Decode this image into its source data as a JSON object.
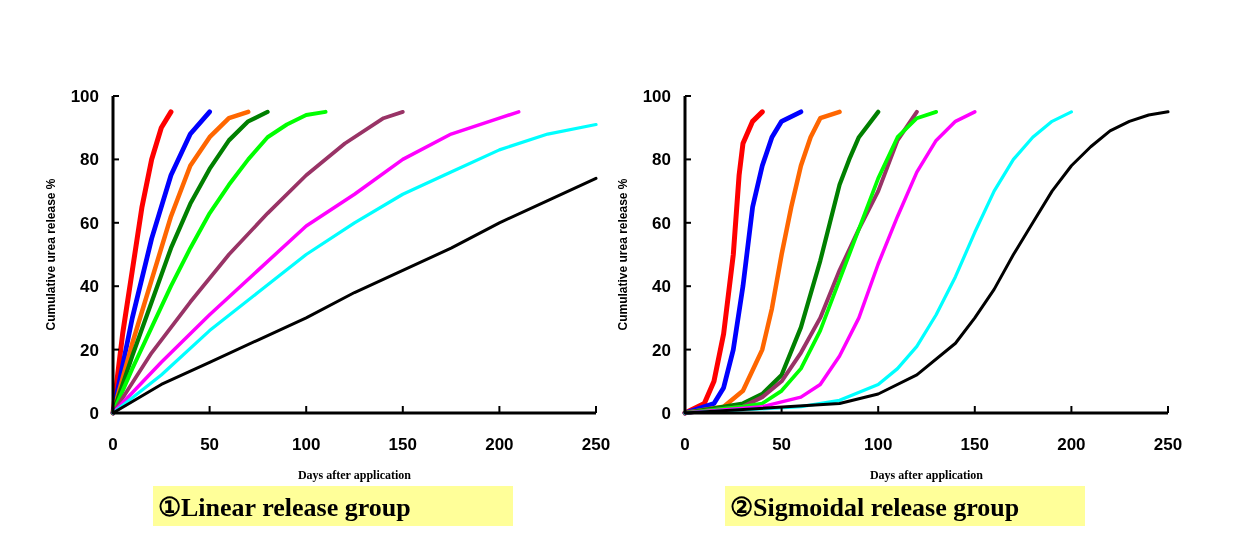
{
  "chart_data": [
    {
      "type": "line",
      "title": "①Linear release group",
      "xlabel": "Days after application",
      "ylabel": "Cumulative urea release %",
      "xlim": [
        0,
        250
      ],
      "xticks": [
        0,
        50,
        100,
        150,
        200,
        250
      ],
      "ylim": [
        0,
        100
      ],
      "yticks": [
        0,
        20,
        40,
        60,
        80,
        100
      ],
      "series": [
        {
          "color": "#ff0000",
          "x": [
            0,
            5,
            10,
            15,
            20,
            25,
            30
          ],
          "values": [
            0,
            25,
            45,
            65,
            80,
            90,
            95
          ]
        },
        {
          "color": "#0000ff",
          "x": [
            0,
            10,
            20,
            30,
            40,
            50
          ],
          "values": [
            0,
            30,
            55,
            75,
            88,
            95
          ]
        },
        {
          "color": "#ff6600",
          "x": [
            0,
            10,
            20,
            30,
            40,
            50,
            60,
            70
          ],
          "values": [
            0,
            22,
            42,
            62,
            78,
            87,
            93,
            95
          ]
        },
        {
          "color": "#008000",
          "x": [
            0,
            10,
            20,
            30,
            40,
            50,
            60,
            70,
            80
          ],
          "values": [
            0,
            18,
            35,
            52,
            66,
            77,
            86,
            92,
            95
          ]
        },
        {
          "color": "#00ff00",
          "x": [
            0,
            10,
            20,
            30,
            40,
            50,
            60,
            70,
            80,
            90,
            100,
            110
          ],
          "values": [
            0,
            14,
            27,
            40,
            52,
            63,
            72,
            80,
            87,
            91,
            94,
            95
          ]
        },
        {
          "color": "#993366",
          "x": [
            0,
            20,
            40,
            60,
            80,
            100,
            120,
            140,
            150
          ],
          "values": [
            0,
            19,
            35,
            50,
            63,
            75,
            85,
            93,
            95
          ]
        },
        {
          "color": "#ff00ff",
          "x": [
            0,
            25,
            50,
            75,
            100,
            125,
            150,
            175,
            200,
            210
          ],
          "values": [
            0,
            16,
            31,
            45,
            59,
            69,
            80,
            88,
            93,
            95
          ]
        },
        {
          "color": "#00ffff",
          "x": [
            0,
            25,
            50,
            75,
            100,
            125,
            150,
            175,
            200,
            225,
            250
          ],
          "values": [
            0,
            12,
            26,
            38,
            50,
            60,
            69,
            76,
            83,
            88,
            91
          ]
        },
        {
          "color": "#000000",
          "x": [
            0,
            25,
            50,
            75,
            100,
            125,
            150,
            175,
            200,
            225,
            250
          ],
          "values": [
            0,
            9,
            16,
            23,
            30,
            38,
            45,
            52,
            60,
            67,
            74
          ]
        }
      ]
    },
    {
      "type": "line",
      "title": "②Sigmoidal release group",
      "xlabel": "Days after application",
      "ylabel": "Cumulative urea release %",
      "xlim": [
        0,
        250
      ],
      "xticks": [
        0,
        50,
        100,
        150,
        200,
        250
      ],
      "ylim": [
        0,
        100
      ],
      "yticks": [
        0,
        20,
        40,
        60,
        80,
        100
      ],
      "series": [
        {
          "color": "#ff0000",
          "x": [
            0,
            10,
            15,
            20,
            25,
            28,
            30,
            35,
            40
          ],
          "values": [
            0,
            3,
            10,
            25,
            50,
            75,
            85,
            92,
            95
          ]
        },
        {
          "color": "#0000ff",
          "x": [
            0,
            15,
            20,
            25,
            30,
            35,
            40,
            45,
            50,
            60
          ],
          "values": [
            0,
            3,
            8,
            20,
            40,
            65,
            78,
            87,
            92,
            95
          ]
        },
        {
          "color": "#ff6600",
          "x": [
            0,
            20,
            30,
            40,
            45,
            50,
            55,
            60,
            65,
            70,
            80
          ],
          "values": [
            0,
            2,
            7,
            20,
            33,
            50,
            65,
            78,
            87,
            93,
            95
          ]
        },
        {
          "color": "#008000",
          "x": [
            0,
            30,
            40,
            50,
            60,
            70,
            75,
            80,
            85,
            90,
            100
          ],
          "values": [
            0,
            3,
            6,
            12,
            27,
            48,
            60,
            72,
            80,
            87,
            95
          ]
        },
        {
          "color": "#993366",
          "x": [
            0,
            30,
            40,
            50,
            60,
            70,
            80,
            90,
            100,
            110,
            120
          ],
          "values": [
            0,
            2,
            5,
            10,
            19,
            30,
            45,
            58,
            70,
            86,
            95
          ]
        },
        {
          "color": "#00ff00",
          "x": [
            0,
            30,
            40,
            50,
            60,
            70,
            80,
            90,
            100,
            110,
            120,
            130
          ],
          "values": [
            0,
            2,
            3,
            7,
            14,
            26,
            42,
            58,
            74,
            87,
            93,
            95
          ]
        },
        {
          "color": "#ff00ff",
          "x": [
            0,
            40,
            60,
            70,
            80,
            90,
            100,
            110,
            120,
            130,
            140,
            150
          ],
          "values": [
            0,
            2,
            5,
            9,
            18,
            30,
            47,
            62,
            76,
            86,
            92,
            95
          ]
        },
        {
          "color": "#00ffff",
          "x": [
            0,
            60,
            80,
            100,
            110,
            120,
            130,
            140,
            150,
            160,
            170,
            180,
            190,
            200
          ],
          "values": [
            0,
            2,
            4,
            9,
            14,
            21,
            31,
            43,
            57,
            70,
            80,
            87,
            92,
            95
          ]
        },
        {
          "color": "#000000",
          "x": [
            0,
            80,
            100,
            120,
            140,
            150,
            160,
            170,
            180,
            190,
            200,
            210,
            220,
            230,
            240,
            250
          ],
          "values": [
            0,
            3,
            6,
            12,
            22,
            30,
            39,
            50,
            60,
            70,
            78,
            84,
            89,
            92,
            94,
            95
          ]
        }
      ]
    }
  ]
}
